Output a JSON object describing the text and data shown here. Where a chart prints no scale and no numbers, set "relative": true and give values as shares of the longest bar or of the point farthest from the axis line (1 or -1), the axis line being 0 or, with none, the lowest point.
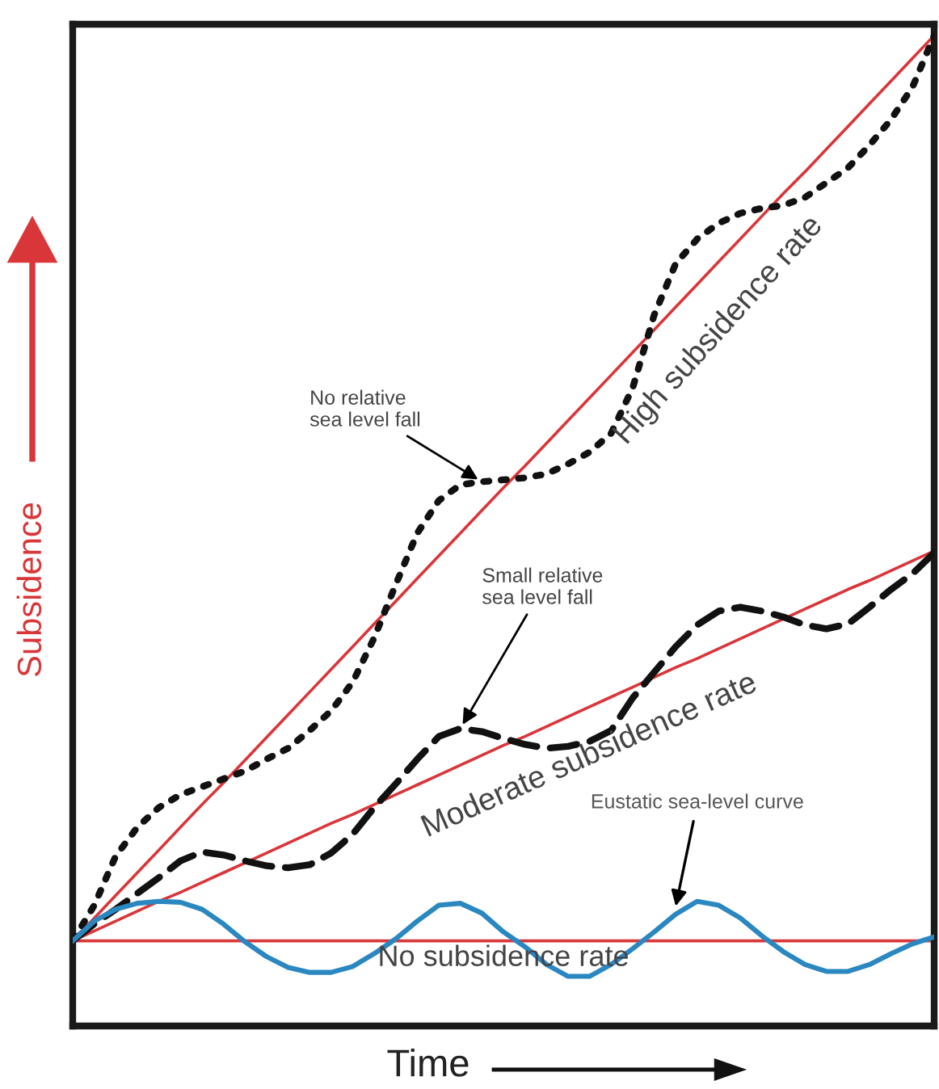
{
  "chart_data": {
    "type": "line",
    "relative": true,
    "xlabel": "Time",
    "ylabel": "Subsidence",
    "marker": "none",
    "categories": [
      null,
      null,
      null,
      null,
      null,
      null,
      null,
      null,
      null,
      null,
      null,
      null,
      null,
      null,
      null,
      null,
      null,
      null,
      null,
      null,
      null,
      null,
      null,
      null,
      null,
      null,
      null,
      null,
      null,
      null,
      null,
      null,
      null,
      null,
      null,
      null,
      null,
      null,
      null,
      null,
      null
    ],
    "series": [
      {
        "name": "No subsidence rate",
        "color": "#d9363a",
        "line_style": "solid",
        "values": [
          0.083,
          0.083,
          0.083,
          0.083,
          0.083,
          0.083,
          0.083,
          0.083,
          0.083,
          0.083,
          0.083,
          0.083,
          0.083,
          0.083,
          0.083,
          0.083,
          0.083,
          0.083,
          0.083,
          0.083,
          0.083,
          0.083,
          0.083,
          0.083,
          0.083,
          0.083,
          0.083,
          0.083,
          0.083,
          0.083,
          0.083,
          0.083,
          0.083,
          0.083,
          0.083,
          0.083,
          0.083,
          0.083,
          0.083,
          0.083,
          0.083
        ]
      },
      {
        "name": "Moderate subsidence rate",
        "color": "#d9363a",
        "line_style": "solid",
        "values": [
          0.083,
          0.093,
          0.103,
          0.113,
          0.123,
          0.132,
          0.142,
          0.152,
          0.162,
          0.172,
          0.182,
          0.192,
          0.202,
          0.211,
          0.221,
          0.231,
          0.241,
          0.251,
          0.261,
          0.271,
          0.281,
          0.29,
          0.3,
          0.31,
          0.32,
          0.33,
          0.34,
          0.35,
          0.36,
          0.369,
          0.379,
          0.389,
          0.399,
          0.409,
          0.419,
          0.429,
          0.439,
          0.448,
          0.458,
          0.468,
          0.478
        ]
      },
      {
        "name": "High subsidence rate",
        "color": "#d9363a",
        "line_style": "solid",
        "values": [
          0.083,
          0.106,
          0.129,
          0.152,
          0.175,
          0.198,
          0.221,
          0.243,
          0.266,
          0.289,
          0.312,
          0.335,
          0.358,
          0.381,
          0.404,
          0.427,
          0.45,
          0.473,
          0.496,
          0.519,
          0.542,
          0.564,
          0.587,
          0.61,
          0.633,
          0.656,
          0.679,
          0.702,
          0.725,
          0.748,
          0.771,
          0.794,
          0.817,
          0.84,
          0.862,
          0.885,
          0.908,
          0.931,
          0.954,
          0.977,
          1.0
        ]
      },
      {
        "color": "#111111",
        "line_style": "dotted",
        "values": [
          0.083,
          0.119,
          0.169,
          0.198,
          0.218,
          0.231,
          0.239,
          0.247,
          0.255,
          0.267,
          0.278,
          0.296,
          0.316,
          0.345,
          0.39,
          0.444,
          0.496,
          0.529,
          0.545,
          0.548,
          0.55,
          0.552,
          0.556,
          0.566,
          0.578,
          0.597,
          0.643,
          0.717,
          0.769,
          0.794,
          0.81,
          0.82,
          0.825,
          0.828,
          0.836,
          0.851,
          0.866,
          0.889,
          0.915,
          0.948,
          1.0
        ]
      },
      {
        "color": "#111111",
        "line_style": "dashed",
        "values": [
          0.083,
          0.1,
          0.115,
          0.131,
          0.147,
          0.164,
          0.173,
          0.17,
          0.164,
          0.159,
          0.157,
          0.16,
          0.172,
          0.191,
          0.218,
          0.242,
          0.267,
          0.29,
          0.298,
          0.295,
          0.288,
          0.282,
          0.278,
          0.28,
          0.285,
          0.296,
          0.329,
          0.355,
          0.381,
          0.403,
          0.417,
          0.421,
          0.417,
          0.411,
          0.403,
          0.399,
          0.404,
          0.421,
          0.439,
          0.455,
          0.476
        ]
      },
      {
        "name": "Eustatic sea-level curve",
        "color": "#2a87c0",
        "line_style": "solid",
        "values": [
          0.083,
          0.103,
          0.115,
          0.121,
          0.123,
          0.122,
          0.115,
          0.1,
          0.082,
          0.067,
          0.056,
          0.051,
          0.051,
          0.057,
          0.07,
          0.085,
          0.103,
          0.119,
          0.121,
          0.111,
          0.092,
          0.077,
          0.059,
          0.047,
          0.047,
          0.059,
          0.075,
          0.092,
          0.11,
          0.123,
          0.119,
          0.106,
          0.088,
          0.072,
          0.059,
          0.052,
          0.052,
          0.059,
          0.07,
          0.08,
          0.087
        ]
      }
    ],
    "annotations": [
      "No relative\nsea level fall",
      "Small relative\nsea level fall"
    ]
  }
}
